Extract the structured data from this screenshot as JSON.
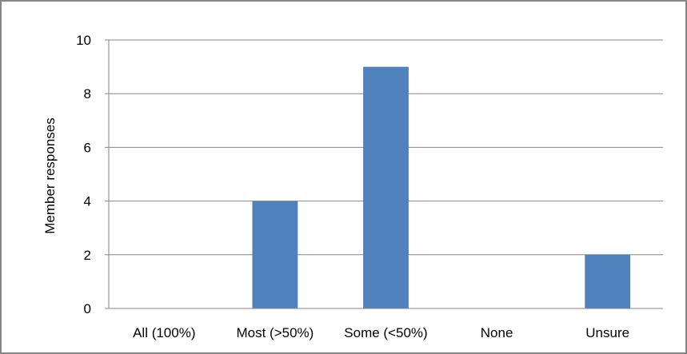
{
  "chart_data": {
    "type": "bar",
    "categories": [
      "All (100%)",
      "Most (>50%)",
      "Some (<50%)",
      "None",
      "Unsure"
    ],
    "values": [
      0,
      4,
      9,
      0,
      2
    ],
    "title": "",
    "xlabel": "",
    "ylabel": "Member responses",
    "ylim": [
      0,
      10
    ],
    "yticks": [
      0,
      2,
      4,
      6,
      8,
      10
    ],
    "grid": true,
    "legend": "none",
    "bar_color": "#4F81BD",
    "grid_color": "#868686"
  }
}
